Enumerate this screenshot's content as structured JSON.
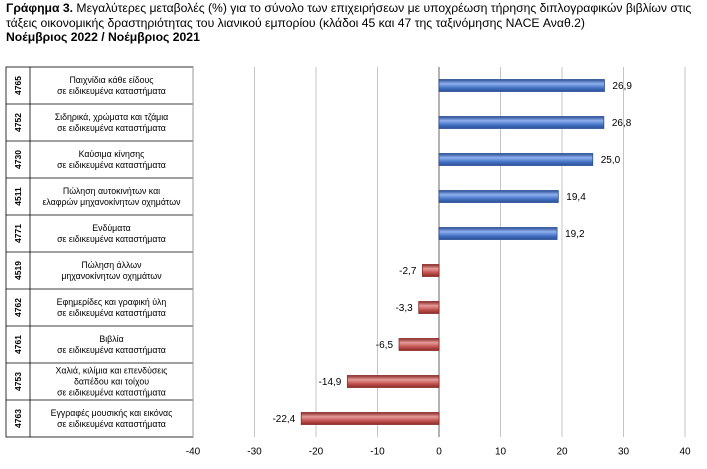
{
  "header": {
    "label": "Γράφημα 3.",
    "text": " Μεγαλύτερες μεταβολές (%) για το σύνολο των επιχειρήσεων με υποχρέωση τήρησης διπλογραφικών βιβλίων στις τάξεις οικονομικής δραστηριότητας του λιανικού εμπορίου (κλάδοι 45 και 47 της ταξινόμησης NACE Αναθ.2)",
    "subtitle": "Νοέμβριος 2022 / Νοέμβριος 2021"
  },
  "chart_data": {
    "type": "bar",
    "orientation": "horizontal",
    "title": "",
    "xlabel": "",
    "ylabel": "",
    "xlim": [
      -40,
      40
    ],
    "xticks": [
      -40,
      -30,
      -20,
      -10,
      0,
      10,
      20,
      30,
      40
    ],
    "grid": true,
    "legend": "none",
    "decimal_separator": ",",
    "categories": [
      {
        "code": "4765",
        "label": [
          "Παιχνίδια κάθε είδους",
          "σε ειδικευμένα καταστήματα"
        ],
        "value": 26.9
      },
      {
        "code": "4752",
        "label": [
          "Σιδηρικά, χρώματα και τζάμια",
          "σε ειδικευμένα καταστήματα"
        ],
        "value": 26.8
      },
      {
        "code": "4730",
        "label": [
          "Καύσιμα κίνησης",
          "σε ειδικευμένα καταστήματα"
        ],
        "value": 25.0
      },
      {
        "code": "4511",
        "label": [
          "Πώληση αυτοκινήτων και",
          "ελαφρών μηχανοκίνητων οχημάτων"
        ],
        "value": 19.4
      },
      {
        "code": "4771",
        "label": [
          "Ενδύματα",
          "σε ειδικευμένα καταστήματα"
        ],
        "value": 19.2
      },
      {
        "code": "4519",
        "label": [
          "Πώληση άλλων",
          "μηχανοκίνητων οχημάτων"
        ],
        "value": -2.7
      },
      {
        "code": "4762",
        "label": [
          "Εφημερίδες και γραφική ύλη",
          "σε ειδικευμένα καταστήματα"
        ],
        "value": -3.3
      },
      {
        "code": "4761",
        "label": [
          "Βιβλία",
          "σε ειδικευμένα καταστήματα"
        ],
        "value": -6.5
      },
      {
        "code": "4753",
        "label": [
          "Χαλιά, κιλίμια και επενδύσεις",
          "δαπέδου και τοίχου",
          "σε ειδικευμένα καταστήματα"
        ],
        "value": -14.9
      },
      {
        "code": "4763",
        "label": [
          "Εγγραφές μουσικής και εικόνας",
          "σε ειδικευμένα καταστήματα"
        ],
        "value": -22.4
      }
    ],
    "colors": {
      "positive": "#4472c4",
      "positive_light": "#8fb0ee",
      "positive_dark": "#2b4f96",
      "negative": "#c0504d",
      "negative_light": "#e59a98",
      "negative_dark": "#8a2b29",
      "grid": "#b5b5b5",
      "axis": "#808080"
    }
  }
}
